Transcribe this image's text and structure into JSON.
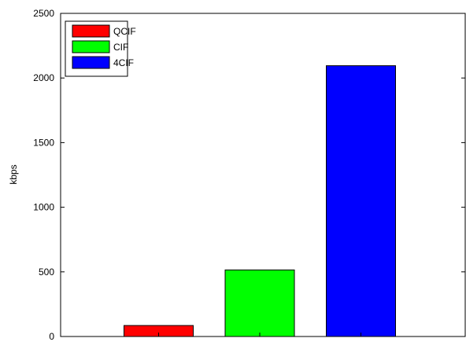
{
  "chart_data": {
    "type": "bar",
    "title": "",
    "xlabel": "",
    "ylabel": "kbps",
    "ylim": [
      0,
      2500
    ],
    "yticks": [
      0,
      500,
      1000,
      1500,
      2000,
      2500
    ],
    "grid": false,
    "legend_position": "top-left",
    "series": [
      {
        "name": "QCIF",
        "value": 85,
        "color": "#ff0000"
      },
      {
        "name": "CIF",
        "value": 515,
        "color": "#00ff00"
      },
      {
        "name": "4CIF",
        "value": 2095,
        "color": "#0000ff"
      }
    ]
  }
}
